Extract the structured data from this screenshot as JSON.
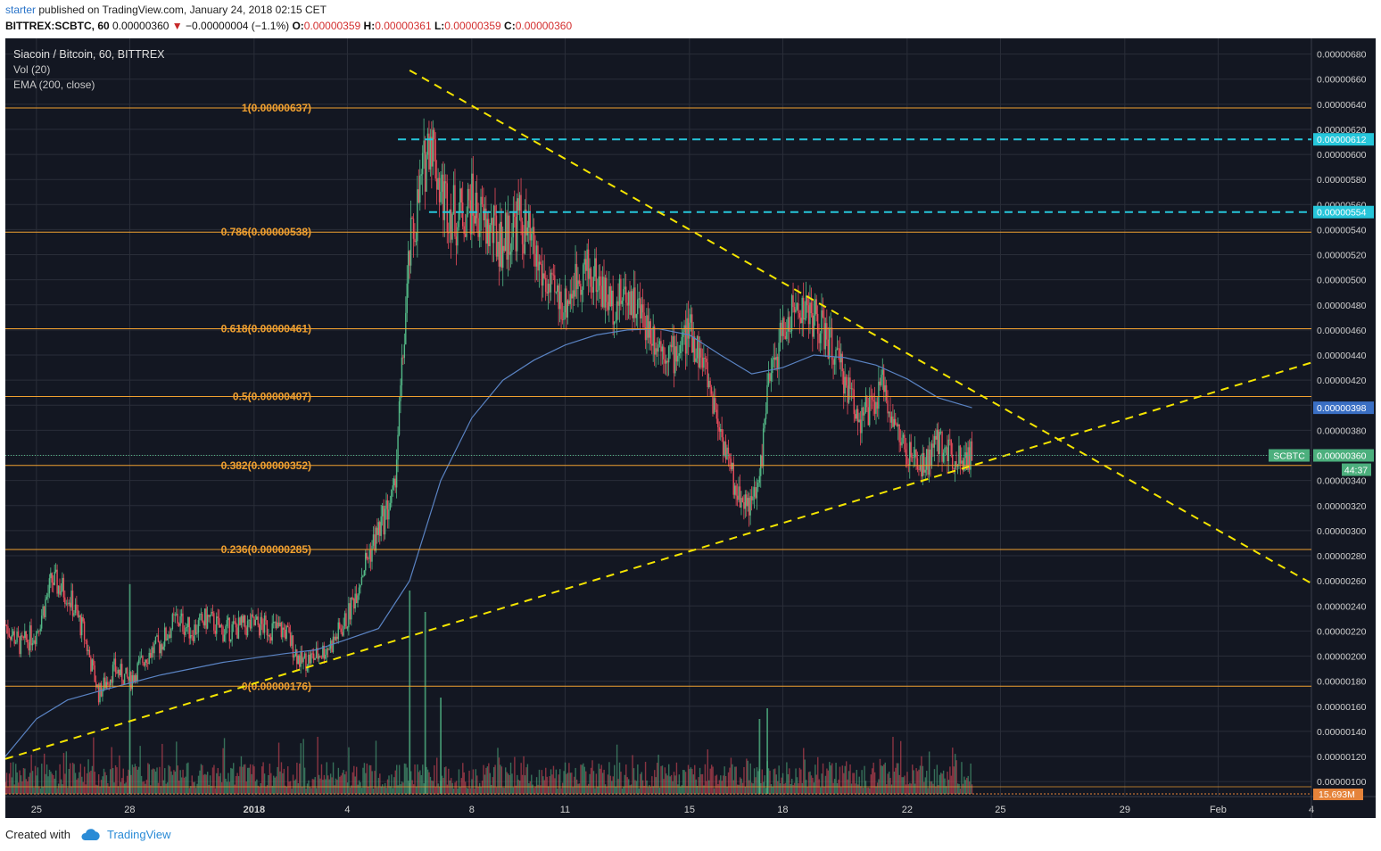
{
  "header": {
    "publisher": "starter",
    "published_text": "published on TradingView.com, January 24, 2018 02:15 CET",
    "symbol_line": "BITTREX:SCBTC, 60",
    "last": "0.00000360",
    "change": "−0.00000004 (−1.1%)",
    "o_label": "O:",
    "o": "0.00000359",
    "h_label": "H:",
    "h": "0.00000361",
    "l_label": "L:",
    "l": "0.00000359",
    "c_label": "C:",
    "c": "0.00000360"
  },
  "legend": {
    "title": "Siacoin / Bitcoin, 60, BITTREX",
    "vol": "Vol (20)",
    "ema": "EMA (200, close)"
  },
  "footer": {
    "created_with": "Created with",
    "brand": "TradingView"
  },
  "colors": {
    "background": "#131722",
    "grid": "#2a2e39",
    "up": "#53b987",
    "down": "#eb4d5c",
    "fib": "#f0a030",
    "trend": "#f5e500",
    "cyan": "#26c6da",
    "ema": "#5a83c3",
    "price_tag": "#4caf7d",
    "ema_tag": "#3a6fc4"
  },
  "chart_data": {
    "type": "candlestick",
    "symbol": "SCBTC",
    "x_axis_labels": [
      "25",
      "28",
      "2018",
      "4",
      "8",
      "11",
      "15",
      "18",
      "22",
      "25",
      "29",
      "Feb",
      "4"
    ],
    "y_axis_ticks": [
      "0.00000100",
      "0.00000120",
      "0.00000140",
      "0.00000160",
      "0.00000180",
      "0.00000200",
      "0.00000220",
      "0.00000240",
      "0.00000260",
      "0.00000280",
      "0.00000300",
      "0.00000320",
      "0.00000340",
      "0.00000360",
      "0.00000380",
      "0.00000400",
      "0.00000420",
      "0.00000440",
      "0.00000460",
      "0.00000480",
      "0.00000500",
      "0.00000520",
      "0.00000540",
      "0.00000560",
      "0.00000580",
      "0.00000600",
      "0.00000620",
      "0.00000640",
      "0.00000660",
      "0.00000680"
    ],
    "ylim": [
      8.8e-07,
      6.925e-06
    ],
    "fib_levels": [
      {
        "label": "1(0.00000637)",
        "price": 6.37e-06
      },
      {
        "label": "0.786(0.00000538)",
        "price": 5.38e-06
      },
      {
        "label": "0.618(0.00000461)",
        "price": 4.61e-06
      },
      {
        "label": "0.5(0.00000407)",
        "price": 4.07e-06
      },
      {
        "label": "0.382(0.00000352)",
        "price": 3.52e-06
      },
      {
        "label": "0.236(0.00000285)",
        "price": 2.85e-06
      },
      {
        "label": "0(0.00000176)",
        "price": 1.76e-06
      }
    ],
    "horizontal_rays": [
      {
        "label": "0.00000612",
        "price": 6.12e-06,
        "start_date": "2018-01-05T15:00"
      },
      {
        "label": "0.00000554",
        "price": 5.54e-06,
        "start_date": "2018-01-06T15:00"
      }
    ],
    "trendlines": [
      {
        "name": "descending resistance",
        "from": {
          "date": "2018-01-06T00:00",
          "price": 6.67e-06
        },
        "to": {
          "date": "2018-02-04T00:00",
          "price": 2.58e-06
        }
      },
      {
        "name": "ascending support",
        "from": {
          "date": "2017-12-24T00:00",
          "price": 1.18e-06
        },
        "to": {
          "date": "2018-02-04T00:00",
          "price": 4.34e-06
        }
      }
    ],
    "price_tags": [
      {
        "label": "0.00000398",
        "price": 3.98e-06
      },
      {
        "symbol": "SCBTC",
        "label": "0.00000360",
        "price": 3.6e-06,
        "countdown": "44:37"
      }
    ],
    "volume_tag": "15.693M",
    "price_path": [
      {
        "date": "2017-12-24T00:00",
        "price": 2.25e-06
      },
      {
        "date": "2017-12-24T12:00",
        "price": 2.08e-06
      },
      {
        "date": "2017-12-25T00:00",
        "price": 2.2e-06
      },
      {
        "date": "2017-12-25T12:00",
        "price": 2.6e-06
      },
      {
        "date": "2017-12-26T00:00",
        "price": 2.5e-06
      },
      {
        "date": "2017-12-26T12:00",
        "price": 2.2e-06
      },
      {
        "date": "2017-12-27T00:00",
        "price": 1.7e-06
      },
      {
        "date": "2017-12-27T12:00",
        "price": 1.9e-06
      },
      {
        "date": "2017-12-28T00:00",
        "price": 1.8e-06
      },
      {
        "date": "2017-12-28T12:00",
        "price": 2e-06
      },
      {
        "date": "2017-12-29T00:00",
        "price": 2.1e-06
      },
      {
        "date": "2017-12-29T12:00",
        "price": 2.3e-06
      },
      {
        "date": "2017-12-30T00:00",
        "price": 2.2e-06
      },
      {
        "date": "2017-12-30T12:00",
        "price": 2.3e-06
      },
      {
        "date": "2017-12-31T00:00",
        "price": 2.2e-06
      },
      {
        "date": "2018-01-01T00:00",
        "price": 2.25e-06
      },
      {
        "date": "2018-01-02T00:00",
        "price": 2.2e-06
      },
      {
        "date": "2018-01-02T12:00",
        "price": 1.95e-06
      },
      {
        "date": "2018-01-03T00:00",
        "price": 2e-06
      },
      {
        "date": "2018-01-03T12:00",
        "price": 2.1e-06
      },
      {
        "date": "2018-01-04T00:00",
        "price": 2.3e-06
      },
      {
        "date": "2018-01-04T12:00",
        "price": 2.7e-06
      },
      {
        "date": "2018-01-05T00:00",
        "price": 3e-06
      },
      {
        "date": "2018-01-05T12:00",
        "price": 3.3e-06
      },
      {
        "date": "2018-01-06T00:00",
        "price": 5.2e-06
      },
      {
        "date": "2018-01-06T08:00",
        "price": 5.7e-06
      },
      {
        "date": "2018-01-06T16:00",
        "price": 6.2e-06
      },
      {
        "date": "2018-01-07T00:00",
        "price": 5.7e-06
      },
      {
        "date": "2018-01-07T12:00",
        "price": 5.5e-06
      },
      {
        "date": "2018-01-08T00:00",
        "price": 5.6e-06
      },
      {
        "date": "2018-01-08T12:00",
        "price": 5.4e-06
      },
      {
        "date": "2018-01-09T00:00",
        "price": 5.3e-06
      },
      {
        "date": "2018-01-09T12:00",
        "price": 5.5e-06
      },
      {
        "date": "2018-01-10T00:00",
        "price": 5.2e-06
      },
      {
        "date": "2018-01-10T12:00",
        "price": 4.9e-06
      },
      {
        "date": "2018-01-11T00:00",
        "price": 4.8e-06
      },
      {
        "date": "2018-01-11T12:00",
        "price": 5.1e-06
      },
      {
        "date": "2018-01-12T00:00",
        "price": 5e-06
      },
      {
        "date": "2018-01-12T12:00",
        "price": 4.8e-06
      },
      {
        "date": "2018-01-13T00:00",
        "price": 4.9e-06
      },
      {
        "date": "2018-01-13T12:00",
        "price": 4.7e-06
      },
      {
        "date": "2018-01-14T00:00",
        "price": 4.5e-06
      },
      {
        "date": "2018-01-14T12:00",
        "price": 4.4e-06
      },
      {
        "date": "2018-01-15T00:00",
        "price": 4.6e-06
      },
      {
        "date": "2018-01-15T12:00",
        "price": 4.3e-06
      },
      {
        "date": "2018-01-16T00:00",
        "price": 3.8e-06
      },
      {
        "date": "2018-01-16T12:00",
        "price": 3.3e-06
      },
      {
        "date": "2018-01-17T00:00",
        "price": 3.2e-06
      },
      {
        "date": "2018-01-17T06:00",
        "price": 3.4e-06
      },
      {
        "date": "2018-01-17T12:00",
        "price": 4.1e-06
      },
      {
        "date": "2018-01-18T00:00",
        "price": 4.6e-06
      },
      {
        "date": "2018-01-18T12:00",
        "price": 4.8e-06
      },
      {
        "date": "2018-01-19T00:00",
        "price": 4.7e-06
      },
      {
        "date": "2018-01-19T12:00",
        "price": 4.5e-06
      },
      {
        "date": "2018-01-20T00:00",
        "price": 4.2e-06
      },
      {
        "date": "2018-01-20T12:00",
        "price": 3.9e-06
      },
      {
        "date": "2018-01-21T00:00",
        "price": 4e-06
      },
      {
        "date": "2018-01-21T06:00",
        "price": 4.2e-06
      },
      {
        "date": "2018-01-21T12:00",
        "price": 3.9e-06
      },
      {
        "date": "2018-01-22T00:00",
        "price": 3.6e-06
      },
      {
        "date": "2018-01-22T12:00",
        "price": 3.5e-06
      },
      {
        "date": "2018-01-23T00:00",
        "price": 3.7e-06
      },
      {
        "date": "2018-01-23T12:00",
        "price": 3.6e-06
      },
      {
        "date": "2018-01-24T02:00",
        "price": 3.6e-06
      }
    ],
    "ema_path": [
      {
        "date": "2017-12-24T00:00",
        "price": 1.2e-06
      },
      {
        "date": "2017-12-25T00:00",
        "price": 1.5e-06
      },
      {
        "date": "2017-12-26T00:00",
        "price": 1.65e-06
      },
      {
        "date": "2017-12-27T00:00",
        "price": 1.72e-06
      },
      {
        "date": "2017-12-29T00:00",
        "price": 1.85e-06
      },
      {
        "date": "2017-12-31T00:00",
        "price": 1.95e-06
      },
      {
        "date": "2018-01-02T00:00",
        "price": 2.02e-06
      },
      {
        "date": "2018-01-03T00:00",
        "price": 2.05e-06
      },
      {
        "date": "2018-01-05T00:00",
        "price": 2.22e-06
      },
      {
        "date": "2018-01-06T00:00",
        "price": 2.6e-06
      },
      {
        "date": "2018-01-07T00:00",
        "price": 3.4e-06
      },
      {
        "date": "2018-01-08T00:00",
        "price": 3.9e-06
      },
      {
        "date": "2018-01-09T00:00",
        "price": 4.2e-06
      },
      {
        "date": "2018-01-10T00:00",
        "price": 4.36e-06
      },
      {
        "date": "2018-01-11T00:00",
        "price": 4.48e-06
      },
      {
        "date": "2018-01-12T00:00",
        "price": 4.56e-06
      },
      {
        "date": "2018-01-13T00:00",
        "price": 4.6e-06
      },
      {
        "date": "2018-01-14T00:00",
        "price": 4.61e-06
      },
      {
        "date": "2018-01-15T00:00",
        "price": 4.56e-06
      },
      {
        "date": "2018-01-16T00:00",
        "price": 4.4e-06
      },
      {
        "date": "2018-01-17T00:00",
        "price": 4.25e-06
      },
      {
        "date": "2018-01-18T00:00",
        "price": 4.3e-06
      },
      {
        "date": "2018-01-19T00:00",
        "price": 4.4e-06
      },
      {
        "date": "2018-01-20T00:00",
        "price": 4.38e-06
      },
      {
        "date": "2018-01-21T00:00",
        "price": 4.32e-06
      },
      {
        "date": "2018-01-22T00:00",
        "price": 4.21e-06
      },
      {
        "date": "2018-01-23T00:00",
        "price": 4.06e-06
      },
      {
        "date": "2018-01-24T02:00",
        "price": 3.98e-06
      }
    ],
    "volume_spikes": [
      {
        "date": "2017-12-28T00:00",
        "level": 0.98
      },
      {
        "date": "2018-01-06T00:00",
        "level": 0.95
      },
      {
        "date": "2018-01-06T12:00",
        "level": 0.85
      },
      {
        "date": "2018-01-07T00:00",
        "level": 0.45
      },
      {
        "date": "2018-01-17T06:00",
        "level": 0.35
      },
      {
        "date": "2018-01-17T12:00",
        "level": 0.4
      }
    ],
    "x_domain": [
      "2017-12-24T00:00",
      "2018-02-04T00:00"
    ]
  }
}
